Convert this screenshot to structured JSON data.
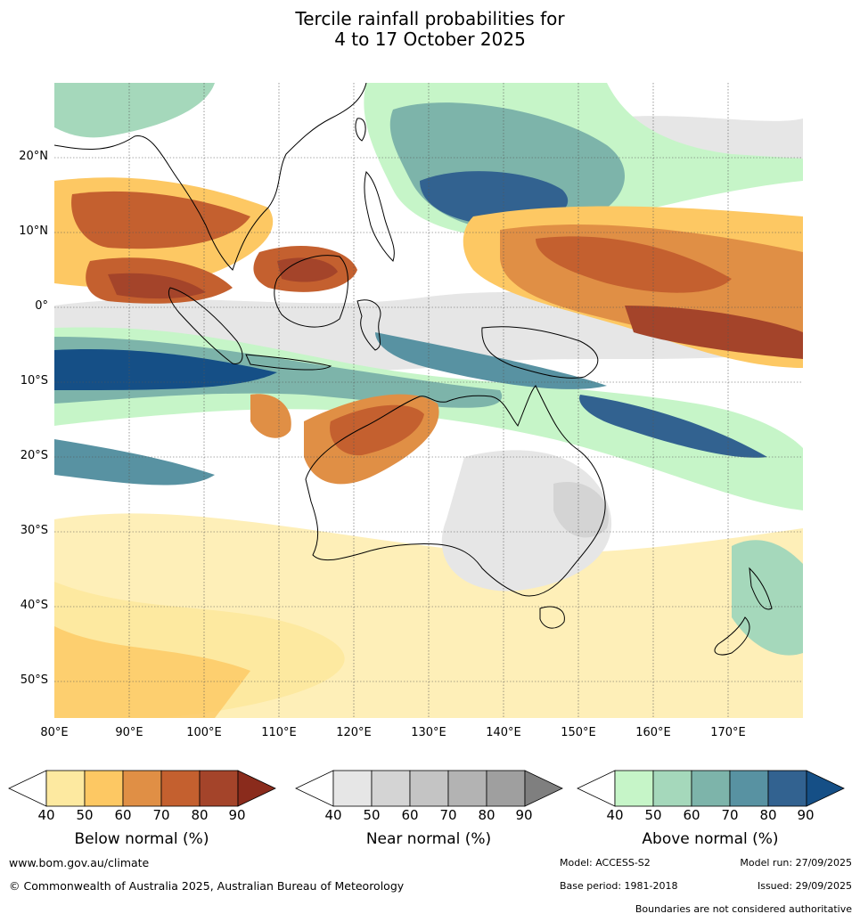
{
  "title_line1": "Tercile rainfall probabilities for",
  "title_line2": "4 to 17 October 2025",
  "lat_labels": [
    "20°N",
    "10°N",
    "0°",
    "10°S",
    "20°S",
    "30°S",
    "40°S",
    "50°S"
  ],
  "lon_labels": [
    "80°E",
    "90°E",
    "100°E",
    "110°E",
    "120°E",
    "130°E",
    "140°E",
    "150°E",
    "160°E",
    "170°E"
  ],
  "legends": {
    "below": {
      "label": "Below normal (%)",
      "ticks": [
        "40",
        "50",
        "60",
        "70",
        "80",
        "90"
      ],
      "colors": [
        "#ffffff",
        "#fde9a0",
        "#fdc863",
        "#e08f45",
        "#c4602f",
        "#a4442a",
        "#8a2b1c"
      ]
    },
    "near": {
      "label": "Near normal (%)",
      "ticks": [
        "40",
        "50",
        "60",
        "70",
        "80",
        "90"
      ],
      "colors": [
        "#ffffff",
        "#e6e6e6",
        "#d4d4d4",
        "#c4c4c4",
        "#b3b3b3",
        "#9f9f9f",
        "#7f7f7f"
      ]
    },
    "above": {
      "label": "Above normal (%)",
      "ticks": [
        "40",
        "50",
        "60",
        "70",
        "80",
        "90"
      ],
      "colors": [
        "#ffffff",
        "#c6f5c8",
        "#a5d8bb",
        "#7db4aa",
        "#5892a2",
        "#326290",
        "#154f86"
      ]
    }
  },
  "footer": {
    "website": "www.bom.gov.au/climate",
    "copyright": "© Commonwealth of Australia 2025, Australian Bureau of Meteorology",
    "model": "Model: ACCESS-S2",
    "model_run": "Model run: 27/09/2025",
    "base_period": "Base period: 1981-2018",
    "issued": "Issued: 29/09/2025",
    "disclaimer": "Boundaries are not considered authoritative"
  }
}
